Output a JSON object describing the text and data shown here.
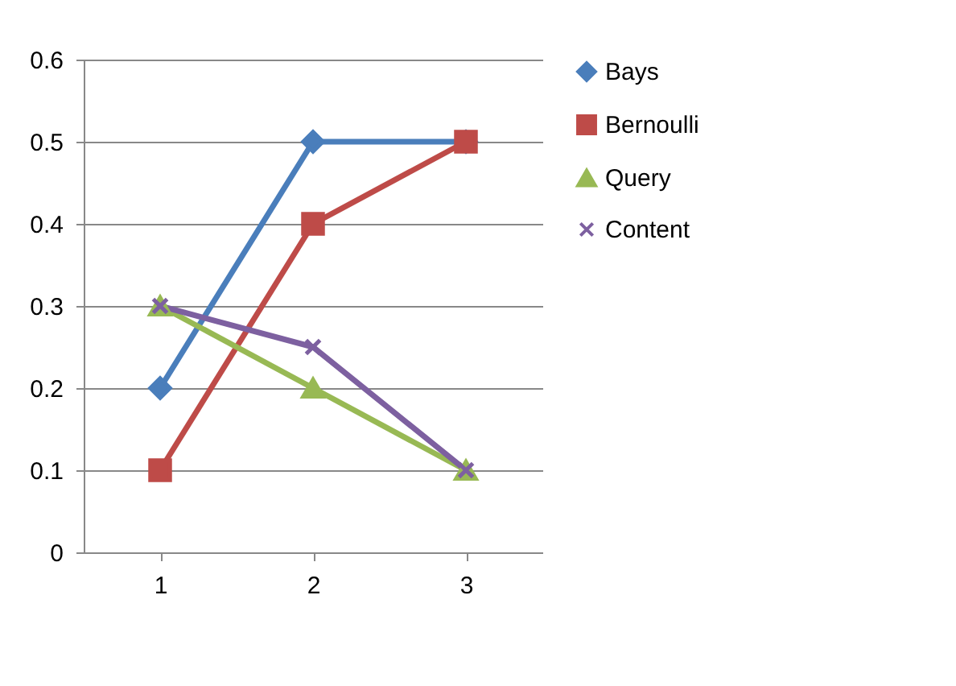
{
  "chart_data": {
    "type": "line",
    "categories": [
      "1",
      "2",
      "3"
    ],
    "series": [
      {
        "name": "Bays",
        "color": "#4a7ebb",
        "marker": "diamond",
        "values": [
          0.2,
          0.5,
          0.5
        ]
      },
      {
        "name": "Bernoulli",
        "color": "#be4b48",
        "marker": "square",
        "values": [
          0.1,
          0.4,
          0.5
        ]
      },
      {
        "name": "Query",
        "color": "#98b954",
        "marker": "triangle",
        "values": [
          0.3,
          0.2,
          0.1
        ]
      },
      {
        "name": "Content",
        "color": "#7d60a0",
        "marker": "cross",
        "values": [
          0.3,
          0.25,
          0.1
        ]
      }
    ],
    "ylim": [
      0,
      0.6
    ],
    "yticks": [
      0,
      0.1,
      0.2,
      0.3,
      0.4,
      0.5,
      0.6
    ],
    "grid": "y",
    "legend": "right"
  }
}
